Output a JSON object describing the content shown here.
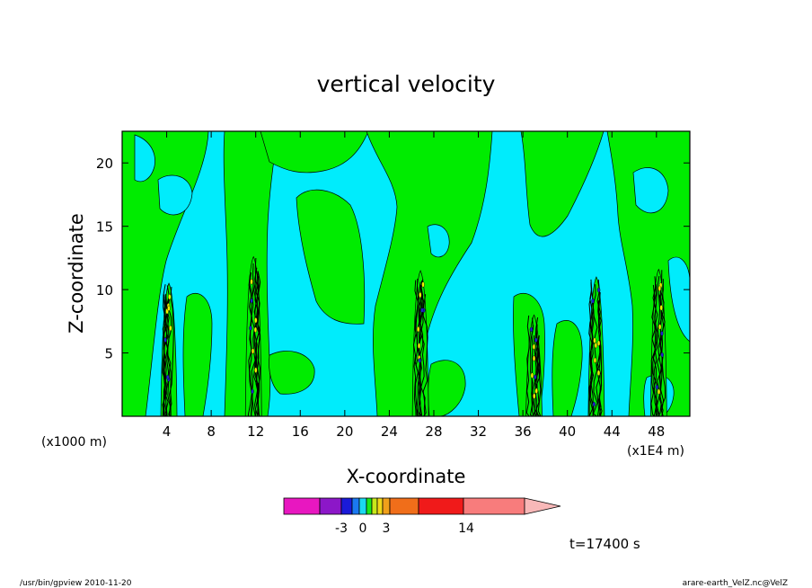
{
  "chart_data": {
    "type": "contour",
    "title": "vertical velocity",
    "xlabel": "X-coordinate",
    "ylabel": "Z-coordinate",
    "x_unit_left": "(x1000 m)",
    "x_unit_right": "(x1E4 m)",
    "x_ticks": [
      "4",
      "8",
      "12",
      "16",
      "20",
      "24",
      "28",
      "32",
      "36",
      "40",
      "44",
      "48"
    ],
    "y_ticks": [
      "5",
      "10",
      "15",
      "20"
    ],
    "xlim": [
      0,
      51
    ],
    "ylim": [
      0,
      22.5
    ],
    "colorbar": {
      "labels": [
        "-3",
        "0",
        "3",
        "14"
      ],
      "colors": [
        "#e817c0",
        "#8c17c8",
        "#1a1ad8",
        "#1a78f0",
        "#1ad8f0",
        "#1ae81a",
        "#c8e81a",
        "#f0d81a",
        "#f0a01a",
        "#f06e1a",
        "#f01a1a",
        "#f87c7c",
        "#f8b8b8"
      ],
      "extend": "right"
    },
    "field_colors": {
      "background": "#00ecfc",
      "positive": "#00ec00",
      "updraft": "#f0f000",
      "downdraft": "#2020d0"
    },
    "convective_columns": [
      {
        "x": 4.2,
        "top": 10.5
      },
      {
        "x": 11.8,
        "top": 12.6
      },
      {
        "x": 26.8,
        "top": 11.5
      },
      {
        "x": 37.0,
        "top": 8.0
      },
      {
        "x": 42.6,
        "top": 11.0
      },
      {
        "x": 48.2,
        "top": 11.6
      }
    ],
    "time_label": "t=17400 s"
  },
  "footer": {
    "left": "/usr/bin/gpview   2010-11-20",
    "right": "arare-earth_VelZ.nc@VelZ"
  }
}
